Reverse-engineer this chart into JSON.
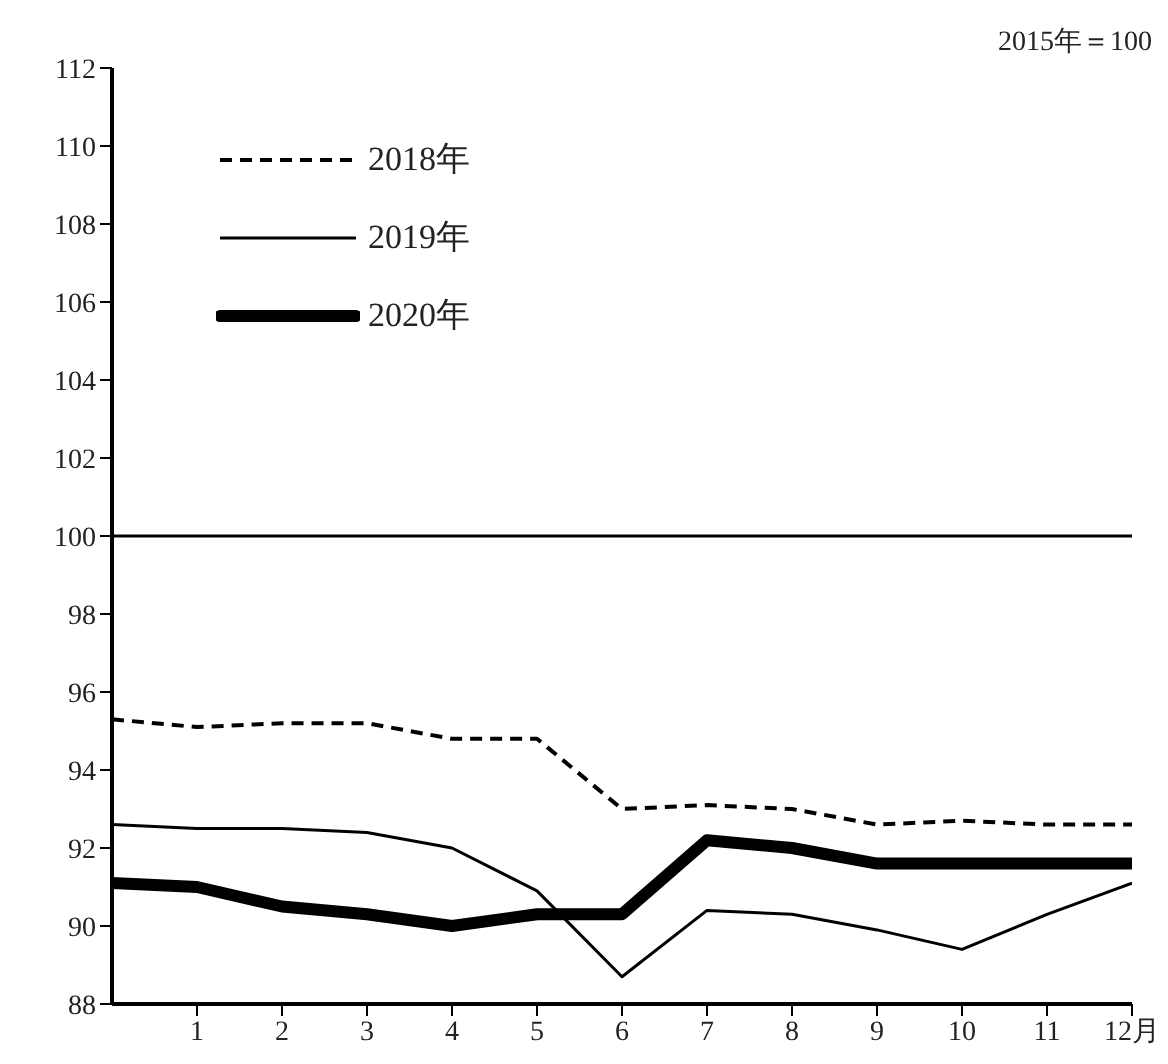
{
  "chart_data": {
    "type": "line",
    "annotations": [
      "2015年＝100"
    ],
    "x": [
      0,
      1,
      2,
      3,
      4,
      5,
      6,
      7,
      8,
      9,
      10,
      11,
      12
    ],
    "series": [
      {
        "name": "2018年",
        "color": "#000000",
        "line_style": "dashed",
        "values": [
          95.3,
          95.1,
          95.2,
          95.2,
          94.8,
          94.8,
          93.0,
          93.1,
          93.0,
          92.6,
          92.7,
          92.6,
          92.6
        ]
      },
      {
        "name": "2019年",
        "color": "#000000",
        "line_style": "solid",
        "values": [
          92.6,
          92.5,
          92.5,
          92.4,
          92.0,
          90.9,
          88.7,
          90.4,
          90.3,
          89.9,
          89.4,
          90.3,
          91.1
        ]
      },
      {
        "name": "2020年",
        "color": "#000000",
        "line_style": "solid",
        "values": [
          91.1,
          91.0,
          90.5,
          90.3,
          90.0,
          90.3,
          90.3,
          92.2,
          92.0,
          91.6,
          91.6,
          91.6,
          91.6
        ]
      }
    ],
    "xlim": [
      0,
      12
    ],
    "xticks": [
      1,
      2,
      3,
      4,
      5,
      6,
      7,
      8,
      9,
      10,
      11,
      {
        "value": 12,
        "label": "12月"
      }
    ],
    "ylim": [
      88,
      112
    ],
    "yticks": [
      88,
      90,
      92,
      94,
      96,
      98,
      100,
      102,
      104,
      106,
      108,
      110,
      112
    ],
    "ref_lines": [
      {
        "axis": "y",
        "value": 100,
        "color": "#000000",
        "line_style": "solid"
      }
    ],
    "grid": false,
    "legend": "top left",
    "marker": "none"
  }
}
